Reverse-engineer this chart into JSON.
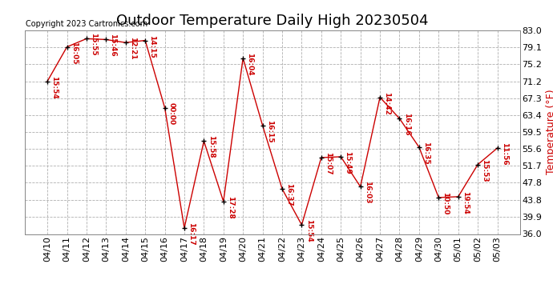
{
  "title": "Outdoor Temperature Daily High 20230504",
  "copyright": "Copyright 2023 Cartronics.com",
  "ylabel": "Temperature (°F)",
  "background_color": "#ffffff",
  "line_color": "#cc0000",
  "marker_color": "#000000",
  "grid_color": "#b0b0b0",
  "dates": [
    "04/10",
    "04/11",
    "04/12",
    "04/13",
    "04/14",
    "04/15",
    "04/16",
    "04/17",
    "04/18",
    "04/19",
    "04/20",
    "04/21",
    "04/22",
    "04/23",
    "04/24",
    "04/25",
    "04/26",
    "04/27",
    "04/28",
    "04/29",
    "04/30",
    "05/01",
    "05/02",
    "05/03"
  ],
  "values": [
    71.2,
    79.1,
    81.0,
    80.8,
    80.1,
    80.6,
    65.1,
    37.4,
    57.4,
    43.5,
    76.5,
    61.0,
    46.4,
    38.1,
    53.6,
    53.8,
    46.9,
    67.5,
    62.6,
    56.0,
    44.4,
    44.6,
    52.0,
    55.8
  ],
  "times": [
    "15:54",
    "16:05",
    "15:55",
    "15:46",
    "12:21",
    "14:15",
    "00:00",
    "16:17",
    "15:58",
    "17:28",
    "16:04",
    "16:15",
    "16:37",
    "15:54",
    "15:07",
    "15:49",
    "16:03",
    "14:42",
    "16:16",
    "16:35",
    "10:50",
    "19:54",
    "15:53",
    "11:56"
  ],
  "ylim": [
    36.0,
    83.0
  ],
  "yticks": [
    36.0,
    39.9,
    43.8,
    47.8,
    51.7,
    55.6,
    59.5,
    63.4,
    67.3,
    71.2,
    75.2,
    79.1,
    83.0
  ],
  "title_fontsize": 13,
  "tick_fontsize": 8,
  "copyright_fontsize": 7,
  "annotation_fontsize": 6.5,
  "ylabel_fontsize": 9,
  "ylabel_color": "#cc0000"
}
